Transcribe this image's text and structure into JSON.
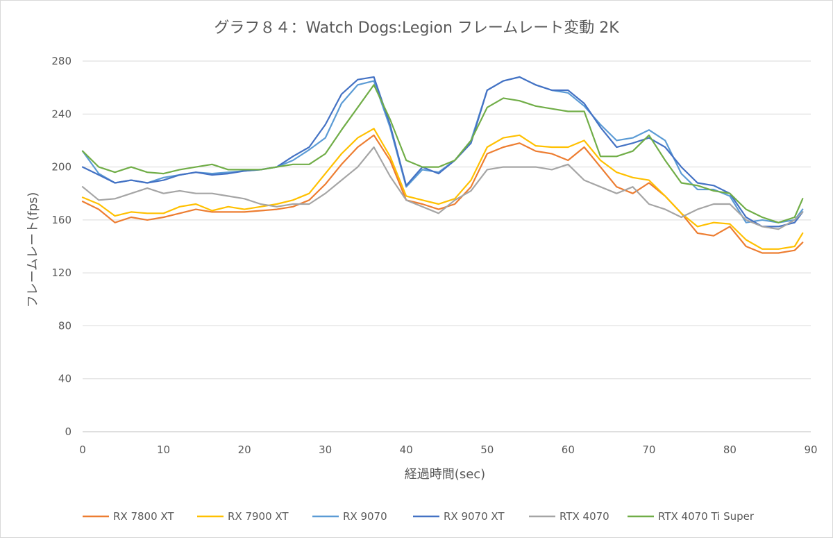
{
  "chart_data": {
    "type": "line",
    "title": "グラフ８４：Watch Dogs:Legion フレームレート変動 2K",
    "xlabel": "経過時間(sec)",
    "ylabel": "フレームレート(fps)",
    "xlim": [
      0,
      90
    ],
    "ylim": [
      0,
      280
    ],
    "xticks": [
      0,
      10,
      20,
      30,
      40,
      50,
      60,
      70,
      80,
      90
    ],
    "yticks": [
      0,
      40,
      80,
      120,
      160,
      200,
      240,
      280
    ],
    "grid": true,
    "legend_position": "bottom",
    "x": [
      0,
      2,
      4,
      6,
      8,
      10,
      12,
      14,
      16,
      18,
      20,
      22,
      24,
      26,
      28,
      30,
      32,
      34,
      36,
      38,
      40,
      42,
      44,
      46,
      48,
      50,
      52,
      54,
      56,
      58,
      60,
      62,
      64,
      66,
      68,
      70,
      72,
      74,
      76,
      78,
      80,
      82,
      84,
      86,
      88,
      89
    ],
    "series": [
      {
        "name": "RX 7800 XT",
        "color": "#ed7d31",
        "values": [
          174,
          168,
          158,
          162,
          160,
          162,
          165,
          168,
          166,
          166,
          166,
          167,
          168,
          170,
          175,
          187,
          202,
          215,
          224,
          205,
          175,
          172,
          168,
          172,
          185,
          210,
          215,
          218,
          212,
          210,
          205,
          215,
          200,
          185,
          180,
          188,
          178,
          165,
          150,
          148,
          155,
          140,
          135,
          135,
          137,
          143
        ]
      },
      {
        "name": "RX 7900 XT",
        "color": "#ffc000",
        "values": [
          177,
          172,
          163,
          166,
          165,
          165,
          170,
          172,
          167,
          170,
          168,
          170,
          172,
          175,
          180,
          195,
          210,
          222,
          229,
          208,
          178,
          175,
          172,
          176,
          190,
          215,
          222,
          224,
          216,
          215,
          215,
          220,
          205,
          196,
          192,
          190,
          178,
          165,
          155,
          158,
          157,
          145,
          138,
          138,
          140,
          150
        ]
      },
      {
        "name": "RX 9070",
        "color": "#5b9bd5",
        "values": [
          212,
          195,
          188,
          190,
          188,
          192,
          194,
          196,
          195,
          196,
          197,
          198,
          200,
          205,
          213,
          222,
          248,
          262,
          265,
          230,
          185,
          198,
          196,
          205,
          220,
          258,
          265,
          268,
          262,
          258,
          256,
          246,
          232,
          220,
          222,
          228,
          220,
          195,
          183,
          183,
          178,
          158,
          160,
          158,
          160,
          168
        ]
      },
      {
        "name": "RX 9070 XT",
        "color": "#4472c4",
        "values": [
          200,
          194,
          188,
          190,
          188,
          190,
          194,
          196,
          194,
          195,
          197,
          198,
          200,
          208,
          215,
          232,
          255,
          266,
          268,
          232,
          186,
          200,
          195,
          205,
          218,
          258,
          265,
          268,
          262,
          258,
          258,
          248,
          230,
          215,
          218,
          222,
          215,
          200,
          188,
          186,
          180,
          162,
          155,
          155,
          158,
          166
        ]
      },
      {
        "name": "RTX 4070",
        "color": "#a5a5a5",
        "values": [
          185,
          175,
          176,
          180,
          184,
          180,
          182,
          180,
          180,
          178,
          176,
          172,
          170,
          172,
          172,
          180,
          190,
          200,
          215,
          193,
          175,
          170,
          165,
          175,
          182,
          198,
          200,
          200,
          200,
          198,
          202,
          190,
          185,
          180,
          185,
          172,
          168,
          162,
          168,
          172,
          172,
          160,
          155,
          153,
          160,
          166
        ]
      },
      {
        "name": "RTX 4070 Ti Super",
        "color": "#70ad47",
        "values": [
          212,
          200,
          196,
          200,
          196,
          195,
          198,
          200,
          202,
          198,
          198,
          198,
          200,
          202,
          202,
          210,
          228,
          245,
          262,
          236,
          205,
          200,
          200,
          205,
          220,
          245,
          252,
          250,
          246,
          244,
          242,
          242,
          208,
          208,
          212,
          224,
          205,
          188,
          186,
          182,
          180,
          168,
          162,
          158,
          162,
          176
        ]
      }
    ]
  }
}
